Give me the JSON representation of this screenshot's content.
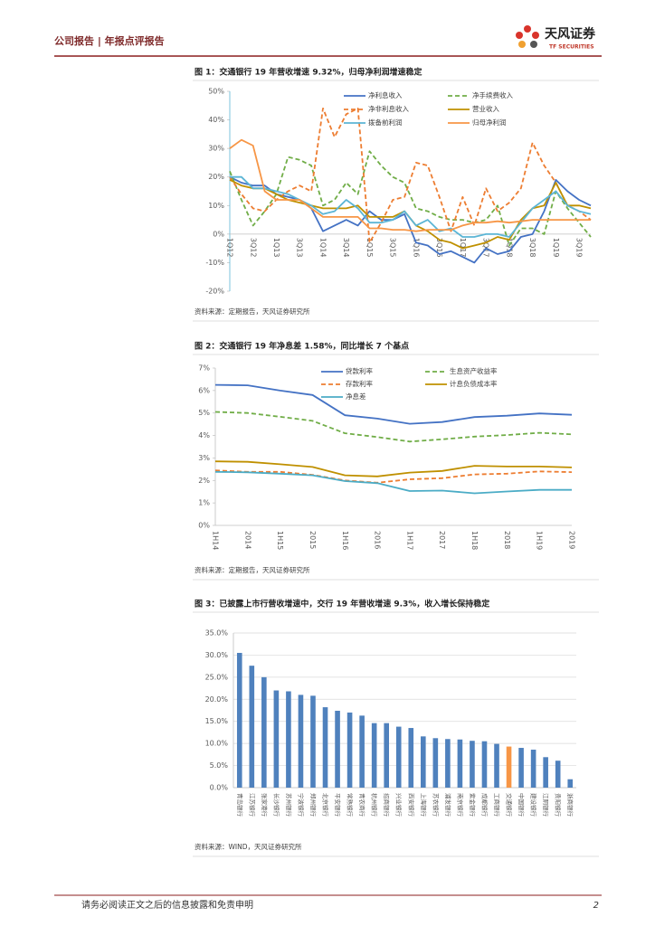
{
  "header": {
    "left": "公司报告 | 年报点评报告",
    "logo_cn": "天风证券",
    "logo_en": "TF SECURITIES"
  },
  "footer": {
    "disclaimer": "请务必阅读正文之后的信息披露和免责申明",
    "page": "2"
  },
  "chart_data": [
    {
      "type": "line",
      "title": "图 1：交通银行 19 年营收增速 9.32%，归母净利润增速稳定",
      "source": "资料来源：定期报告，天风证券研究所",
      "categories": [
        "1Q12",
        null,
        "3Q12",
        null,
        "1Q13",
        null,
        "3Q13",
        null,
        "1Q14",
        null,
        "3Q14",
        null,
        "1Q15",
        null,
        "3Q15",
        null,
        "1Q16",
        null,
        "3Q16",
        null,
        "1Q17",
        null,
        "3Q17",
        null,
        "1Q18",
        null,
        "3Q18",
        null,
        "1Q19",
        null,
        "3Q19",
        null
      ],
      "ylim": [
        -20,
        50
      ],
      "yticks": [
        {
          "value": -20,
          "label": "-20%"
        },
        {
          "value": -10,
          "label": "-10%"
        },
        {
          "value": 0,
          "label": "0%"
        },
        {
          "value": 10,
          "label": "10%"
        },
        {
          "value": 20,
          "label": "20%"
        },
        {
          "value": 30,
          "label": "30%"
        },
        {
          "value": 40,
          "label": "40%"
        },
        {
          "value": 50,
          "label": "50%"
        }
      ],
      "grid": false,
      "series": [
        {
          "name": "净利息收入",
          "color": "#4472c4",
          "style": "solid",
          "values": [
            20,
            18,
            17,
            17,
            14,
            13,
            12,
            9,
            1,
            3,
            5,
            3,
            8,
            5,
            5,
            7,
            -3,
            -4,
            -7,
            -6,
            -8,
            -10,
            -5,
            -7,
            -6,
            -1,
            0,
            8,
            19,
            15,
            12,
            10
          ]
        },
        {
          "name": "净手续费收入",
          "color": "#70ad47",
          "style": "dashed",
          "values": [
            22,
            12,
            3,
            8,
            14,
            27,
            26,
            24,
            10,
            12,
            18,
            14,
            29,
            24,
            20,
            18,
            9,
            8,
            6,
            5,
            5,
            4,
            5,
            10,
            -4,
            2,
            2,
            0,
            15,
            9,
            4,
            -1
          ]
        },
        {
          "name": "净非利息收入",
          "color": "#ed7d31",
          "style": "dashed",
          "values": [
            20,
            14,
            9,
            8,
            12,
            15,
            17,
            15,
            44,
            34,
            42,
            44,
            -3,
            4,
            12,
            13,
            25,
            24,
            13,
            1,
            13,
            3,
            16,
            8,
            11,
            16,
            32,
            24,
            18,
            10,
            8,
            5
          ]
        },
        {
          "name": "营业收入",
          "color": "#bf9000",
          "style": "solid",
          "values": [
            19,
            17,
            16,
            16,
            14,
            12,
            11,
            10,
            9,
            9,
            9,
            10,
            6,
            6,
            6,
            8,
            3,
            1,
            -2,
            -3,
            -5,
            -4,
            -3,
            -1,
            -2,
            5,
            9,
            10,
            18,
            10,
            10,
            9
          ]
        },
        {
          "name": "拨备前利润",
          "color": "#5bb5d5",
          "style": "solid",
          "values": [
            20,
            20,
            16,
            16,
            15,
            14,
            12,
            10,
            7,
            8,
            12,
            9,
            4,
            4,
            5,
            8,
            3,
            5,
            1,
            2,
            -1,
            -1,
            0,
            0,
            -1,
            4,
            9,
            12,
            15,
            10,
            8,
            7
          ]
        },
        {
          "name": "归母净利润",
          "color": "#f79646",
          "style": "solid",
          "values": [
            30,
            33,
            31,
            15,
            12,
            12,
            12,
            9,
            6,
            6,
            6,
            6,
            2,
            2,
            1.5,
            1.5,
            1,
            1.5,
            1.5,
            1.5,
            3,
            4,
            4,
            4.5,
            4,
            4.5,
            5,
            5,
            5,
            5,
            5,
            5
          ]
        }
      ]
    },
    {
      "type": "line",
      "title": "图 2：交通银行 19 年净息差 1.58%，同比增长 7 个基点",
      "source": "资料来源：定期报告，天风证券研究所",
      "categories": [
        "1H14",
        "2014",
        "1H15",
        "2015",
        "1H16",
        "2016",
        "1H17",
        "2017",
        "1H18",
        "2018",
        "1H19",
        "2019"
      ],
      "ylim": [
        0,
        7
      ],
      "yticks": [
        {
          "value": 0,
          "label": "0%"
        },
        {
          "value": 1,
          "label": "1%"
        },
        {
          "value": 2,
          "label": "2%"
        },
        {
          "value": 3,
          "label": "3%"
        },
        {
          "value": 4,
          "label": "4%"
        },
        {
          "value": 5,
          "label": "5%"
        },
        {
          "value": 6,
          "label": "6%"
        },
        {
          "value": 7,
          "label": "7%"
        }
      ],
      "grid": false,
      "series": [
        {
          "name": "贷款利率",
          "color": "#4472c4",
          "style": "solid",
          "values": [
            6.25,
            6.23,
            6.0,
            5.8,
            4.9,
            4.75,
            4.52,
            4.6,
            4.82,
            4.88,
            4.98,
            4.92
          ]
        },
        {
          "name": "生息资产收益率",
          "color": "#70ad47",
          "style": "dashed",
          "values": [
            5.05,
            5.0,
            4.83,
            4.65,
            4.1,
            3.93,
            3.73,
            3.83,
            3.95,
            4.02,
            4.12,
            4.05
          ]
        },
        {
          "name": "存款利率",
          "color": "#ed7d31",
          "style": "dashed",
          "values": [
            2.45,
            2.38,
            2.38,
            2.25,
            2.0,
            1.9,
            2.05,
            2.1,
            2.27,
            2.3,
            2.4,
            2.37
          ]
        },
        {
          "name": "计息负债成本率",
          "color": "#bf9000",
          "style": "solid",
          "values": [
            2.85,
            2.83,
            2.72,
            2.6,
            2.23,
            2.18,
            2.35,
            2.42,
            2.65,
            2.62,
            2.62,
            2.58
          ]
        },
        {
          "name": "净息差",
          "color": "#4bacc6",
          "style": "solid",
          "values": [
            2.38,
            2.36,
            2.3,
            2.23,
            1.97,
            1.88,
            1.53,
            1.55,
            1.43,
            1.51,
            1.58,
            1.58
          ]
        }
      ]
    },
    {
      "type": "bar",
      "title": "图 3：已披露上市行营收增速中，交行 19 年营收增速 9.3%，收入增长保持稳定",
      "source": "资料来源：WIND，天风证券研究所",
      "categories": [
        "青岛银行",
        "江苏银行",
        "张家港行",
        "长沙银行",
        "苏州银行",
        "宁波银行",
        "郑州银行",
        "北京银行",
        "平安银行",
        "常熟银行",
        "青农商行",
        "杭州银行",
        "招商银行",
        "兴业银行",
        "西安银行",
        "上海银行",
        "苏农银行",
        "浦发银行",
        "南京银行",
        "紫金银行",
        "成都银行",
        "工商银行",
        "交通银行",
        "中国银行",
        "建设银行",
        "江阴银行",
        "贵阳银行",
        "浙商银行"
      ],
      "values": [
        30.5,
        27.6,
        25,
        22,
        21.8,
        21,
        20.8,
        18.2,
        17.4,
        17,
        16.3,
        14.6,
        14.6,
        13.8,
        13.5,
        11.6,
        11.2,
        11,
        10.9,
        10.6,
        10.5,
        9.9,
        9.3,
        9,
        8.6,
        6.9,
        6.1,
        1.9
      ],
      "colors": [
        "#4f81bd",
        "#4f81bd",
        "#4f81bd",
        "#4f81bd",
        "#4f81bd",
        "#4f81bd",
        "#4f81bd",
        "#4f81bd",
        "#4f81bd",
        "#4f81bd",
        "#4f81bd",
        "#4f81bd",
        "#4f81bd",
        "#4f81bd",
        "#4f81bd",
        "#4f81bd",
        "#4f81bd",
        "#4f81bd",
        "#4f81bd",
        "#4f81bd",
        "#4f81bd",
        "#4f81bd",
        "#f79646",
        "#4f81bd",
        "#4f81bd",
        "#4f81bd",
        "#4f81bd",
        "#4f81bd"
      ],
      "ylim": [
        0,
        35
      ],
      "yticks": [
        {
          "value": 0,
          "label": "0.0%"
        },
        {
          "value": 5,
          "label": "5.0%"
        },
        {
          "value": 10,
          "label": "10.0%"
        },
        {
          "value": 15,
          "label": "15.0%"
        },
        {
          "value": 20,
          "label": "20.0%"
        },
        {
          "value": 25,
          "label": "25.0%"
        },
        {
          "value": 30,
          "label": "30.0%"
        },
        {
          "value": 35,
          "label": "35.0%"
        }
      ],
      "grid": true
    }
  ]
}
